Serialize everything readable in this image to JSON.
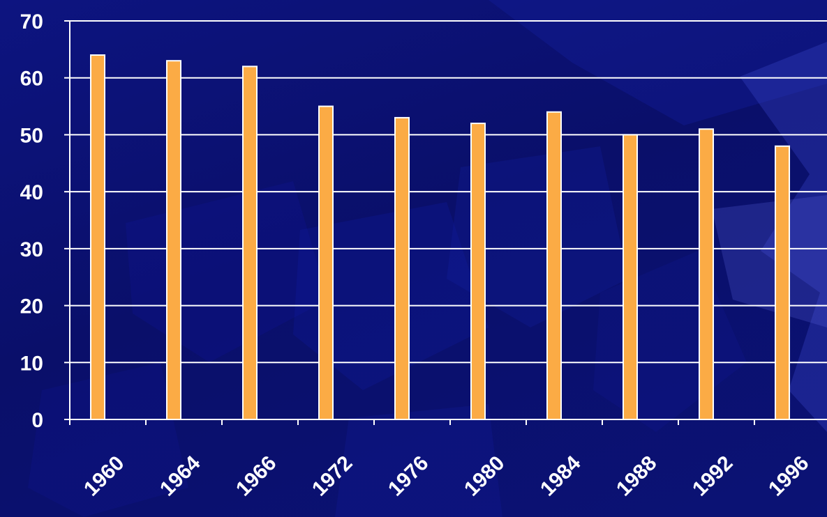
{
  "chart_data": {
    "type": "bar",
    "categories": [
      "1960",
      "1964",
      "1966",
      "1972",
      "1976",
      "1980",
      "1984",
      "1988",
      "1992",
      "1996"
    ],
    "values": [
      64,
      63,
      62,
      55,
      53,
      52,
      54,
      50,
      51,
      48
    ],
    "ylim": [
      0,
      70
    ],
    "yticks": [
      "0",
      "10",
      "20",
      "30",
      "40",
      "50",
      "60",
      "70"
    ],
    "title": "",
    "xlabel": "",
    "ylabel": "",
    "grid": true,
    "legend": "none",
    "bar_color": "#fbab45",
    "bar_outline_color": "#ffffff",
    "background_color": "#0b0f6e",
    "text_color": "#ffffff"
  }
}
